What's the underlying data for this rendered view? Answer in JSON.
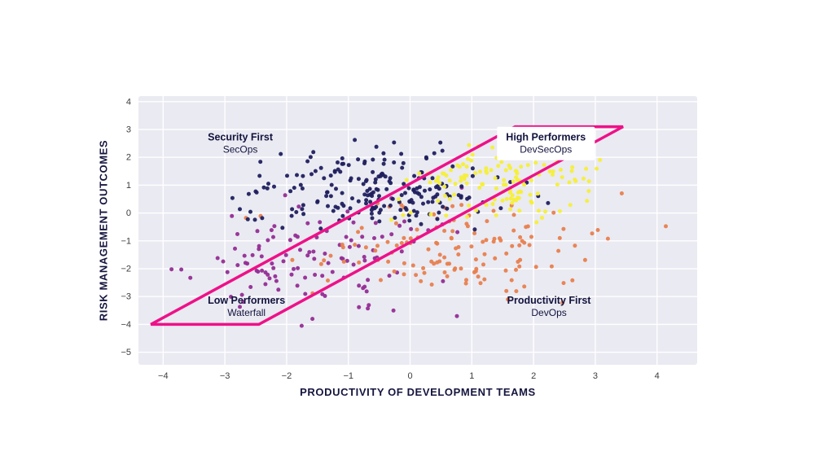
{
  "figure": {
    "background": "#ffffff",
    "plot_background": "#eaeaf2",
    "grid_color": "#ffffff",
    "tick_color": "#3d3d3d",
    "annotation_color": "#13133f"
  },
  "chart_data": {
    "type": "scatter",
    "title": "",
    "xlabel": "PRODUCTIVITY OF DEVELOPMENT TEAMS",
    "ylabel": "RISK MANAGEMENT OUTCOMES",
    "xlim": [
      -4.4,
      4.65
    ],
    "ylim": [
      -5.45,
      4.2
    ],
    "xticks": [
      -4,
      -3,
      -2,
      -1,
      0,
      1,
      2,
      3,
      4
    ],
    "yticks": [
      -5,
      -4,
      -3,
      -2,
      -1,
      0,
      1,
      2,
      3,
      4
    ],
    "grid": true,
    "legend": "none",
    "series": [
      {
        "name": "Low Performers (Waterfall)",
        "color": "#932d93",
        "n": 115,
        "center": [
          -1.5,
          -1.6
        ],
        "sd": [
          1.0,
          1.0
        ],
        "seed": 11
      },
      {
        "name": "Productivity First (DevOps)",
        "color": "#e8804e",
        "n": 140,
        "center": [
          0.85,
          -1.25
        ],
        "sd": [
          1.05,
          0.8
        ],
        "seed": 22
      },
      {
        "name": "Security First (SecOps)",
        "color": "#20205f",
        "n": 210,
        "center": [
          -0.55,
          0.85
        ],
        "sd": [
          1.0,
          0.8
        ],
        "seed": 33
      },
      {
        "name": "High Performers (DevSecOps)",
        "color": "#f5ef39",
        "n": 140,
        "center": [
          1.45,
          1.15
        ],
        "sd": [
          0.85,
          0.7
        ],
        "seed": 44
      }
    ],
    "band": {
      "color": "#ee1188",
      "stroke_width": 3.5,
      "points": [
        [
          -4.2,
          -4.0
        ],
        [
          -2.45,
          -4.0
        ],
        [
          3.45,
          3.1
        ],
        [
          1.7,
          3.1
        ]
      ]
    },
    "annotations": [
      {
        "title": "Security First",
        "subtitle": "SecOps",
        "x": -2.75,
        "y": 2.6,
        "boxed": false
      },
      {
        "title": "High Performers",
        "subtitle": "DevSecOps",
        "x": 2.2,
        "y": 2.6,
        "boxed": true
      },
      {
        "title": "Low Performers",
        "subtitle": "Waterfall",
        "x": -2.65,
        "y": -3.25,
        "boxed": false
      },
      {
        "title": "Productivity First",
        "subtitle": "DevOps",
        "x": 2.25,
        "y": -3.25,
        "boxed": false
      }
    ]
  }
}
